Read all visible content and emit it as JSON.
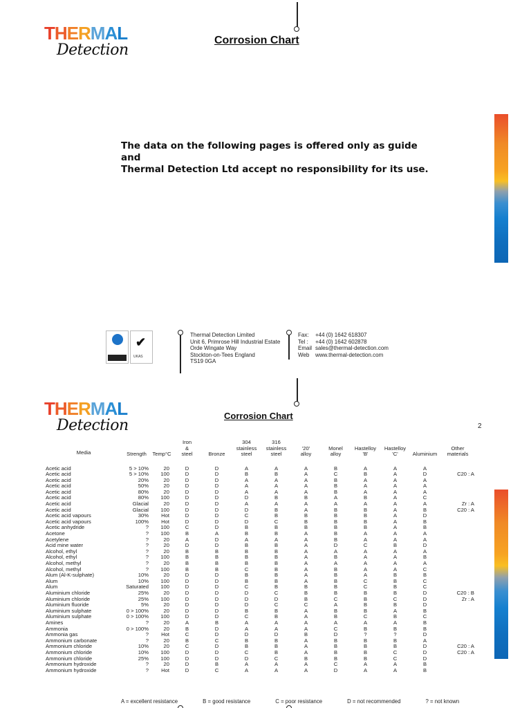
{
  "brand": {
    "thermal_letters": [
      {
        "char": "T",
        "color": "#e8402a"
      },
      {
        "char": "H",
        "color": "#ec5c2a"
      },
      {
        "char": "E",
        "color": "#f07f27"
      },
      {
        "char": "R",
        "color": "#f4a023"
      },
      {
        "char": "M",
        "color": "#5aa3d8"
      },
      {
        "char": "A",
        "color": "#2b8fd5"
      },
      {
        "char": "L",
        "color": "#1a7fcc"
      }
    ],
    "thermal_text": "THERMAL",
    "detection_text": "Detection"
  },
  "page1": {
    "title": "Corrosion Chart",
    "disclaimer_line1": "The data on the following pages is offered only as guide and",
    "disclaimer_line2": "Thermal Detection Ltd accept no responsibility for its use.",
    "certifications": {
      "nqa_label": "nqa",
      "nqa_sub": "ISO 9001 Registered",
      "nqa_bar": "Quality Management",
      "ukas_label": "UKAS"
    },
    "address": [
      "Thermal Detection Limited",
      "Unit 6, Primrose Hill Industrial Estate",
      "Orde Wingate Way",
      "Stockton-on-Tees England",
      "TS19 0GA"
    ],
    "contact": [
      {
        "label": "Fax:",
        "value": "+44 (0) 1642 618307"
      },
      {
        "label": "Tel :",
        "value": "+44 (0) 1642 602878"
      },
      {
        "label": "Email",
        "value": "sales@thermal-detection.com"
      },
      {
        "label": "Web",
        "value": "www.thermal-detection.com"
      }
    ]
  },
  "page2": {
    "title": "Corrosion Chart",
    "page_number": "2",
    "legend": [
      "A = excellent resistance",
      "B = good resistance",
      "C = poor resistance",
      "D = not recommended",
      "? = not known"
    ]
  },
  "chart_data": {
    "type": "table",
    "title": "Corrosion Chart",
    "columns": [
      "Media",
      "Strength",
      "Temp°C",
      "Iron & steel",
      "Bronze",
      "304 stainless steel",
      "316 stainless steel",
      "'20' alloy",
      "Monel alloy",
      "Hastelloy 'B'",
      "Hastelloy 'C'",
      "Aluminium",
      "Other materials"
    ],
    "header_lines": [
      [
        "Media"
      ],
      [
        "Strength"
      ],
      [
        "Temp°C"
      ],
      [
        "Iron",
        "&",
        "steel"
      ],
      [
        "Bronze"
      ],
      [
        "304",
        "stainless",
        "steel"
      ],
      [
        "316",
        "stainless",
        "steel"
      ],
      [
        "'20'",
        "alloy"
      ],
      [
        "Monel",
        "alloy"
      ],
      [
        "Hastelloy",
        "'B'"
      ],
      [
        "Hastelloy",
        "'C'"
      ],
      [
        "Aluminium"
      ],
      [
        "Other",
        "materials"
      ]
    ],
    "rows": [
      [
        "Acetic acid",
        "5 > 10%",
        "20",
        "D",
        "D",
        "A",
        "A",
        "A",
        "B",
        "A",
        "A",
        "A",
        ""
      ],
      [
        "Acetic acid",
        "5 > 10%",
        "100",
        "D",
        "D",
        "B",
        "B",
        "A",
        "C",
        "B",
        "A",
        "D",
        "C20 : A"
      ],
      [
        "Acetic acid",
        "20%",
        "20",
        "D",
        "D",
        "A",
        "A",
        "A",
        "B",
        "A",
        "A",
        "A",
        ""
      ],
      [
        "Acetic acid",
        "50%",
        "20",
        "D",
        "D",
        "A",
        "A",
        "A",
        "B",
        "A",
        "A",
        "A",
        ""
      ],
      [
        "Acetic acid",
        "80%",
        "20",
        "D",
        "D",
        "A",
        "A",
        "A",
        "B",
        "A",
        "A",
        "A",
        ""
      ],
      [
        "Acetic acid",
        "80%",
        "100",
        "D",
        "D",
        "D",
        "B",
        "B",
        "A",
        "B",
        "A",
        "C",
        ""
      ],
      [
        "Acetic acid",
        "Glacial",
        "20",
        "D",
        "D",
        "A",
        "A",
        "A",
        "A",
        "A",
        "A",
        "A",
        "Zr : A"
      ],
      [
        "Acetic acid",
        "Glacial",
        "100",
        "D",
        "D",
        "D",
        "B",
        "A",
        "B",
        "B",
        "A",
        "B",
        "C20 : A"
      ],
      [
        "Acetic acid vapours",
        "30%",
        "Hot",
        "D",
        "D",
        "C",
        "B",
        "B",
        "B",
        "B",
        "A",
        "D",
        ""
      ],
      [
        "Acetic acid vapours",
        "100%",
        "Hot",
        "D",
        "D",
        "D",
        "C",
        "B",
        "B",
        "B",
        "A",
        "B",
        ""
      ],
      [
        "Acetic anhydride",
        "?",
        "100",
        "C",
        "D",
        "B",
        "B",
        "B",
        "B",
        "B",
        "A",
        "B",
        ""
      ],
      [
        "Acetone",
        "?",
        "100",
        "B",
        "A",
        "B",
        "B",
        "A",
        "B",
        "A",
        "A",
        "A",
        ""
      ],
      [
        "Acetylene",
        "?",
        "20",
        "A",
        "D",
        "A",
        "A",
        "A",
        "B",
        "A",
        "A",
        "A",
        ""
      ],
      [
        "Acid mine water",
        "?",
        "20",
        "D",
        "D",
        "B",
        "B",
        "A",
        "D",
        "C",
        "B",
        "D",
        ""
      ],
      [
        "Alcohol, ethyl",
        "?",
        "20",
        "B",
        "B",
        "B",
        "B",
        "A",
        "A",
        "A",
        "A",
        "A",
        ""
      ],
      [
        "Alcohol, ethyl",
        "?",
        "100",
        "B",
        "B",
        "B",
        "B",
        "A",
        "B",
        "A",
        "A",
        "B",
        ""
      ],
      [
        "Alcohol, methyl",
        "?",
        "20",
        "B",
        "B",
        "B",
        "B",
        "A",
        "A",
        "A",
        "A",
        "A",
        ""
      ],
      [
        "Alcohol, methyl",
        "?",
        "100",
        "B",
        "B",
        "C",
        "B",
        "A",
        "B",
        "A",
        "A",
        "C",
        ""
      ],
      [
        "Alum (Al-K-sulphate)",
        "10%",
        "20",
        "D",
        "D",
        "B",
        "B",
        "A",
        "B",
        "A",
        "B",
        "B",
        ""
      ],
      [
        "Alum",
        "10%",
        "100",
        "D",
        "D",
        "B",
        "B",
        "A",
        "B",
        "C",
        "B",
        "C",
        ""
      ],
      [
        "Alum",
        "Saturated",
        "100",
        "D",
        "D",
        "C",
        "B",
        "B",
        "B",
        "C",
        "B",
        "C",
        ""
      ],
      [
        "Aluminium chloride",
        "25%",
        "20",
        "D",
        "D",
        "D",
        "C",
        "B",
        "B",
        "B",
        "B",
        "D",
        "C20 : B"
      ],
      [
        "Aluminium chloride",
        "25%",
        "100",
        "D",
        "D",
        "D",
        "D",
        "B",
        "C",
        "B",
        "C",
        "D",
        "Zr : A"
      ],
      [
        "Aluminium fluoride",
        "5%",
        "20",
        "D",
        "D",
        "D",
        "C",
        "C",
        "A",
        "B",
        "B",
        "D",
        ""
      ],
      [
        "Aluminium sulphate",
        "0 > 100%",
        "20",
        "D",
        "D",
        "B",
        "B",
        "A",
        "B",
        "B",
        "A",
        "B",
        ""
      ],
      [
        "Aluminium sulphate",
        "0 > 100%",
        "100",
        "D",
        "D",
        "C",
        "B",
        "A",
        "B",
        "C",
        "B",
        "C",
        ""
      ],
      [
        "Amines",
        "?",
        "20",
        "A",
        "B",
        "A",
        "A",
        "A",
        "A",
        "A",
        "A",
        "B",
        ""
      ],
      [
        "Ammonia",
        "0 > 100%",
        "20",
        "B",
        "D",
        "A",
        "A",
        "A",
        "C",
        "B",
        "B",
        "B",
        ""
      ],
      [
        "Ammonia gas",
        "?",
        "Hot",
        "C",
        "D",
        "D",
        "D",
        "B",
        "D",
        "?",
        "?",
        "D",
        ""
      ],
      [
        "Ammonium carbonate",
        "?",
        "20",
        "B",
        "C",
        "B",
        "B",
        "A",
        "B",
        "B",
        "B",
        "A",
        ""
      ],
      [
        "Ammonium chloride",
        "10%",
        "20",
        "C",
        "D",
        "B",
        "B",
        "A",
        "B",
        "B",
        "B",
        "D",
        "C20 : A"
      ],
      [
        "Ammonium chloride",
        "10%",
        "100",
        "D",
        "D",
        "C",
        "B",
        "A",
        "B",
        "B",
        "C",
        "D",
        "C20 : A"
      ],
      [
        "Ammonium chloride",
        "25%",
        "100",
        "D",
        "D",
        "D",
        "C",
        "B",
        "B",
        "B",
        "C",
        "D",
        ""
      ],
      [
        "Ammonium hydroxide",
        "?",
        "20",
        "D",
        "B",
        "A",
        "A",
        "A",
        "C",
        "A",
        "A",
        "B",
        ""
      ],
      [
        "Ammonium hydroxide",
        "?",
        "Hot",
        "D",
        "C",
        "A",
        "A",
        "A",
        "D",
        "A",
        "A",
        "B",
        ""
      ]
    ]
  }
}
